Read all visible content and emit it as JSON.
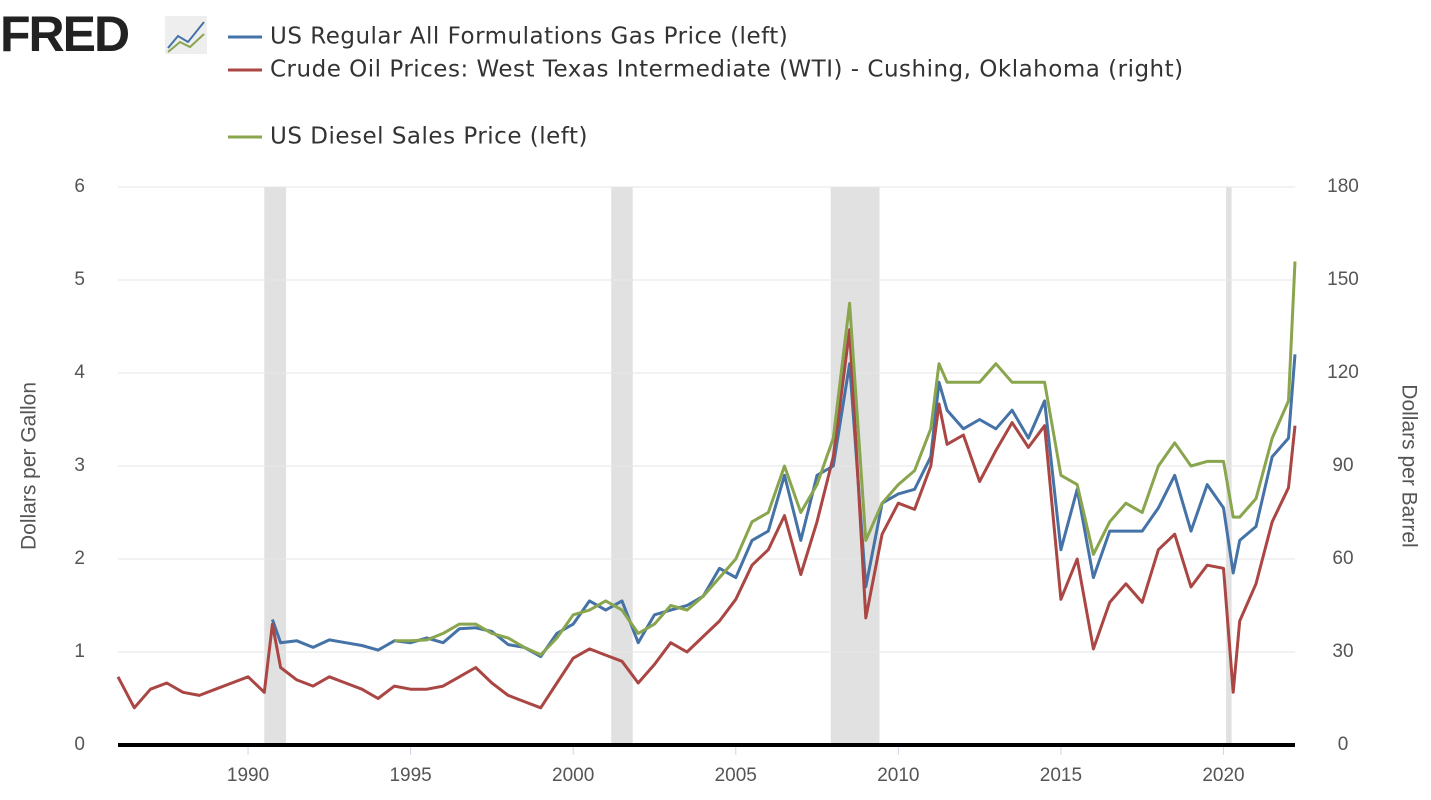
{
  "chart_data": {
    "type": "line",
    "logo": "FRED",
    "y_label": "Dollars per Gallon",
    "y2_label": "Dollars per Barrel",
    "xlim": [
      1986.0,
      2022.2
    ],
    "xticks": [
      1990,
      1995,
      2000,
      2005,
      2010,
      2015,
      2020
    ],
    "ylim": [
      0,
      6
    ],
    "yticks": [
      0,
      1,
      2,
      3,
      4,
      5,
      6
    ],
    "y2lim": [
      0,
      180
    ],
    "y2ticks": [
      0,
      30,
      60,
      90,
      120,
      150,
      180
    ],
    "grid": true,
    "recessions": [
      [
        1990.5,
        1991.17
      ],
      [
        2001.17,
        2001.83
      ],
      [
        2007.92,
        2009.42
      ],
      [
        2020.08,
        2020.25
      ]
    ],
    "x": [
      1986.0,
      1986.5,
      1987.0,
      1987.5,
      1988.0,
      1988.5,
      1989.0,
      1989.5,
      1990.0,
      1990.5,
      1990.75,
      1991.0,
      1991.5,
      1992.0,
      1992.5,
      1993.0,
      1993.5,
      1994.0,
      1994.5,
      1995.0,
      1995.5,
      1996.0,
      1996.5,
      1997.0,
      1997.5,
      1998.0,
      1998.5,
      1999.0,
      1999.5,
      2000.0,
      2000.5,
      2001.0,
      2001.5,
      2002.0,
      2002.5,
      2003.0,
      2003.5,
      2004.0,
      2004.5,
      2005.0,
      2005.5,
      2006.0,
      2006.5,
      2007.0,
      2007.5,
      2008.0,
      2008.5,
      2009.0,
      2009.5,
      2010.0,
      2010.5,
      2011.0,
      2011.25,
      2011.5,
      2012.0,
      2012.5,
      2013.0,
      2013.5,
      2014.0,
      2014.5,
      2015.0,
      2015.5,
      2016.0,
      2016.5,
      2017.0,
      2017.5,
      2018.0,
      2018.5,
      2019.0,
      2019.5,
      2020.0,
      2020.3,
      2020.5,
      2021.0,
      2021.5,
      2022.0,
      2022.2
    ],
    "series": [
      {
        "name": "US Regular All Formulations Gas Price (left)",
        "color": "#4572a7",
        "values": [
          null,
          null,
          null,
          null,
          null,
          null,
          null,
          null,
          null,
          null,
          1.35,
          1.1,
          1.12,
          1.05,
          1.13,
          1.1,
          1.07,
          1.02,
          1.12,
          1.1,
          1.15,
          1.1,
          1.25,
          1.26,
          1.22,
          1.08,
          1.05,
          0.95,
          1.2,
          1.3,
          1.55,
          1.45,
          1.55,
          1.1,
          1.4,
          1.45,
          1.5,
          1.6,
          1.9,
          1.8,
          2.2,
          2.3,
          2.9,
          2.2,
          2.9,
          3.0,
          4.1,
          1.7,
          2.6,
          2.7,
          2.75,
          3.1,
          3.9,
          3.6,
          3.4,
          3.5,
          3.4,
          3.6,
          3.3,
          3.7,
          2.1,
          2.75,
          1.8,
          2.3,
          2.3,
          2.3,
          2.55,
          2.9,
          2.3,
          2.8,
          2.55,
          1.85,
          2.2,
          2.35,
          3.1,
          3.3,
          4.2
        ]
      },
      {
        "name": "Crude Oil Prices: West Texas Intermediate (WTI) - Cushing, Oklahoma (right)",
        "color": "#aa4643",
        "axis": "y2",
        "values": [
          22,
          12,
          18,
          20,
          17,
          16,
          18,
          20,
          22,
          17,
          39,
          25,
          21,
          19,
          22,
          20,
          18,
          15,
          19,
          18,
          18,
          19,
          22,
          25,
          20,
          16,
          14,
          12,
          20,
          28,
          31,
          29,
          27,
          20,
          26,
          33,
          30,
          35,
          40,
          47,
          58,
          63,
          74,
          55,
          72,
          93,
          134,
          41,
          68,
          78,
          76,
          90,
          110,
          97,
          100,
          85,
          95,
          104,
          96,
          103,
          47,
          60,
          31,
          46,
          52,
          46,
          63,
          68,
          51,
          58,
          57,
          17,
          40,
          52,
          72,
          83,
          103
        ]
      },
      {
        "name": "US Diesel Sales Price (left)",
        "color": "#89a54e",
        "values": [
          null,
          null,
          null,
          null,
          null,
          null,
          null,
          null,
          null,
          null,
          null,
          null,
          null,
          null,
          null,
          null,
          null,
          null,
          1.12,
          1.12,
          1.13,
          1.2,
          1.3,
          1.3,
          1.2,
          1.15,
          1.05,
          0.97,
          1.15,
          1.4,
          1.45,
          1.55,
          1.45,
          1.2,
          1.3,
          1.5,
          1.45,
          1.6,
          1.8,
          2.0,
          2.4,
          2.5,
          3.0,
          2.5,
          2.8,
          3.3,
          4.75,
          2.2,
          2.6,
          2.8,
          2.95,
          3.4,
          4.1,
          3.9,
          3.9,
          3.9,
          4.1,
          3.9,
          3.9,
          3.9,
          2.9,
          2.8,
          2.05,
          2.4,
          2.6,
          2.5,
          3.0,
          3.25,
          3.0,
          3.05,
          3.05,
          2.45,
          2.45,
          2.65,
          3.3,
          3.7,
          5.2
        ]
      }
    ]
  }
}
